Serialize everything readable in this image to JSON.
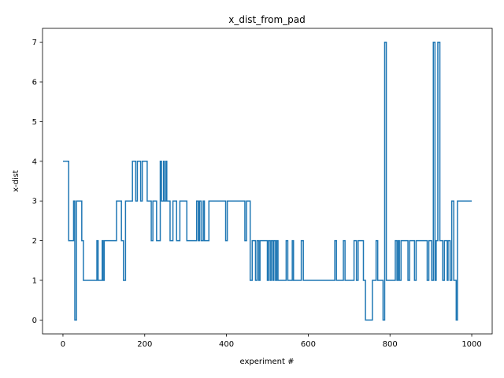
{
  "chart_data": {
    "type": "line",
    "title": "x_dist_from_pad",
    "xlabel": "experiment #",
    "ylabel": "x-dist",
    "xlim": [
      -50,
      1050
    ],
    "ylim": [
      -0.35,
      7.35
    ],
    "xticks": [
      0,
      200,
      400,
      600,
      800,
      1000
    ],
    "yticks": [
      0,
      1,
      2,
      3,
      4,
      5,
      6,
      7
    ],
    "grid": false,
    "step": true,
    "series": [
      {
        "color": "#1f77b4",
        "x": [
          0,
          10,
          14,
          22,
          26,
          29,
          33,
          36,
          46,
          50,
          83,
          86,
          90,
          96,
          98,
          101,
          104,
          131,
          135,
          143,
          148,
          153,
          170,
          178,
          182,
          190,
          194,
          203,
          206,
          216,
          220,
          224,
          229,
          238,
          241,
          246,
          248,
          252,
          254,
          256,
          258,
          262,
          269,
          276,
          278,
          286,
          298,
          303,
          327,
          331,
          334,
          338,
          343,
          346,
          357,
          361,
          398,
          402,
          413,
          417,
          421,
          445,
          449,
          458,
          463,
          471,
          475,
          479,
          482,
          500,
          503,
          507,
          510,
          514,
          516,
          520,
          523,
          526,
          546,
          550,
          561,
          564,
          583,
          588,
          601,
          640,
          660,
          665,
          669,
          686,
          690,
          712,
          718,
          722,
          735,
          740,
          757,
          760,
          766,
          770,
          783,
          787,
          791,
          813,
          817,
          820,
          823,
          827,
          844,
          848,
          860,
          864,
          891,
          895,
          902,
          906,
          910,
          913,
          917,
          922,
          926,
          929,
          933,
          940,
          942,
          947,
          951,
          956,
          962,
          965,
          969,
          981,
          984,
          989,
          993,
          997,
          1000
        ],
        "y": [
          4,
          4,
          2,
          2,
          3,
          0,
          3,
          3,
          2,
          1,
          2,
          1,
          1,
          2,
          1,
          2,
          2,
          3,
          3,
          2,
          1,
          3,
          4,
          3,
          4,
          3,
          4,
          4,
          3,
          2,
          3,
          3,
          2,
          4,
          3,
          4,
          3,
          4,
          3,
          3,
          3,
          2,
          3,
          3,
          2,
          3,
          3,
          2,
          3,
          2,
          3,
          2,
          3,
          2,
          3,
          3,
          2,
          3,
          3,
          3,
          3,
          2,
          3,
          1,
          2,
          1,
          2,
          1,
          2,
          1,
          2,
          1,
          2,
          1,
          2,
          1,
          2,
          1,
          2,
          1,
          2,
          1,
          2,
          1,
          1,
          1,
          1,
          2,
          1,
          2,
          1,
          2,
          1,
          2,
          1,
          0,
          1,
          1,
          2,
          1,
          0,
          7,
          1,
          2,
          1,
          2,
          1,
          2,
          1,
          2,
          1,
          2,
          1,
          2,
          1,
          7,
          1,
          2,
          7,
          2,
          2,
          1,
          2,
          1,
          2,
          1,
          3,
          1,
          0,
          3,
          3,
          3,
          3,
          3,
          3,
          3,
          3
        ]
      }
    ]
  }
}
